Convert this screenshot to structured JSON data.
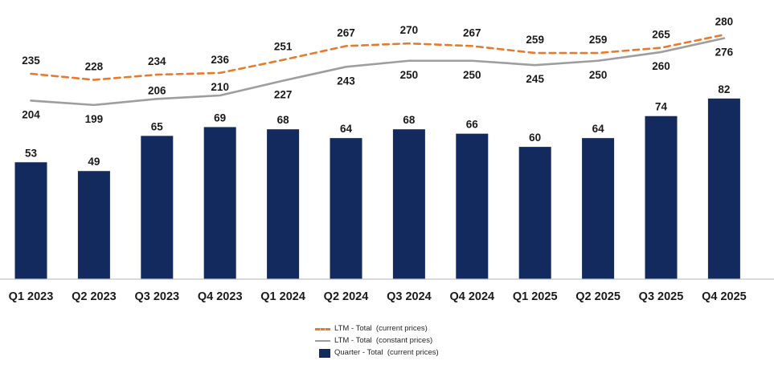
{
  "chart_data": {
    "type": "bar-line-combo",
    "title": "",
    "xlabel": "",
    "ylabel": "",
    "grid": false,
    "legend_position": "bottom-center",
    "axis_line_color": "#d9d9d9",
    "label_color": "#1a1a1a",
    "categories": [
      "Q1 2023",
      "Q2 2023",
      "Q3 2023",
      "Q4 2023",
      "Q1 2024",
      "Q2 2024",
      "Q3 2024",
      "Q4 2024",
      "Q1 2025",
      "Q2 2025",
      "Q3 2025",
      "Q4 2025"
    ],
    "bar_series": {
      "name": "Quarter - Total  (current prices)",
      "color": "#132a5e",
      "values": [
        53,
        49,
        65,
        69,
        68,
        64,
        68,
        66,
        60,
        64,
        74,
        82
      ]
    },
    "line_series": [
      {
        "name": "LTM - Total  (current prices)",
        "style": "dashed",
        "color": "#e97a2d",
        "values": [
          235,
          228,
          234,
          236,
          251,
          267,
          270,
          267,
          259,
          259,
          265,
          280
        ],
        "label_sides": [
          "above",
          "above",
          "above",
          "above",
          "above",
          "above",
          "above",
          "above",
          "above",
          "above",
          "above",
          "above"
        ]
      },
      {
        "name": "LTM - Total  (constant prices)",
        "style": "solid",
        "color": "#9e9e9e",
        "values": [
          204,
          199,
          206,
          210,
          227,
          243,
          250,
          250,
          245,
          250,
          260,
          276
        ],
        "label_sides": [
          "below",
          "below",
          "above",
          "above",
          "below",
          "below",
          "below",
          "below",
          "below",
          "below",
          "below",
          "below"
        ]
      }
    ]
  },
  "legend": {
    "items": [
      {
        "label": "LTM - Total  (current prices)",
        "marker": "dashed-orange-line"
      },
      {
        "label": "LTM - Total  (constant prices)",
        "marker": "solid-gray-line"
      },
      {
        "label": "Quarter - Total  (current prices)",
        "marker": "navy-square"
      }
    ]
  }
}
